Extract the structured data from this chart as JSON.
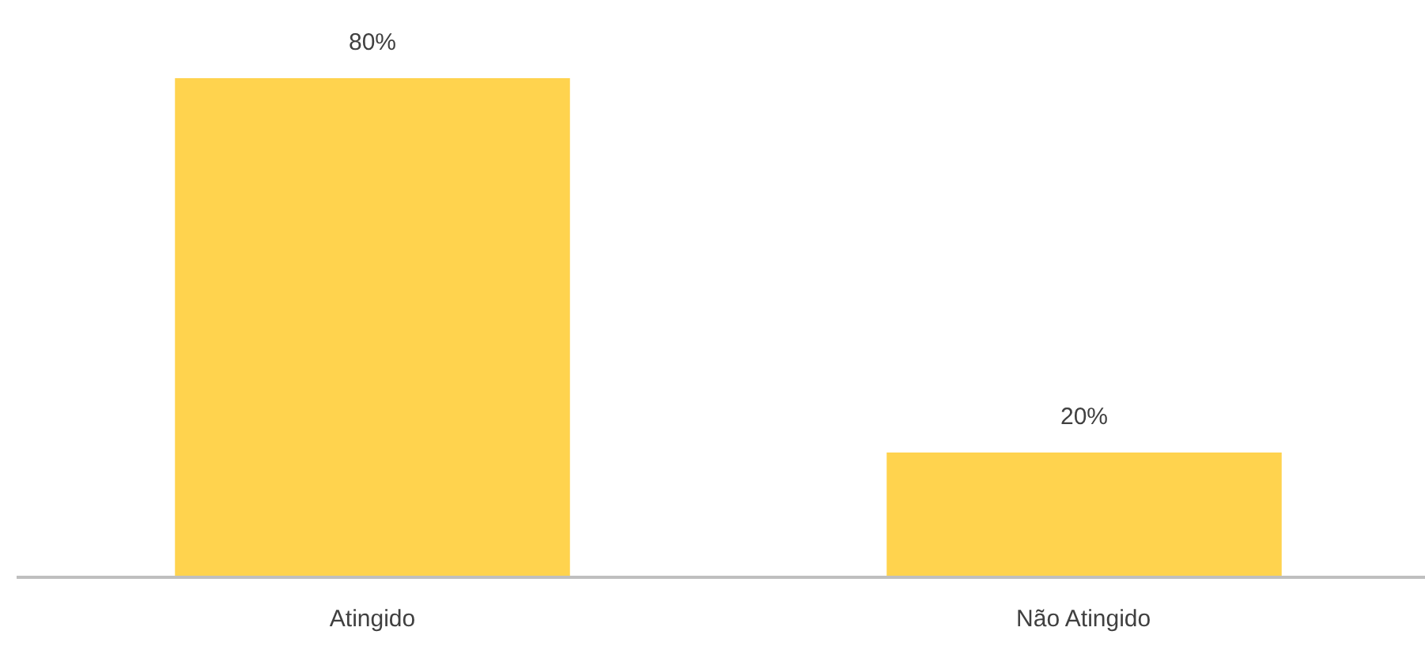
{
  "chart_data": {
    "type": "bar",
    "categories": [
      "Atingido",
      "Não Atingido"
    ],
    "values": [
      80,
      20
    ],
    "value_labels": [
      "80%",
      "20%"
    ],
    "color": "#ffd34e",
    "grid": false
  }
}
